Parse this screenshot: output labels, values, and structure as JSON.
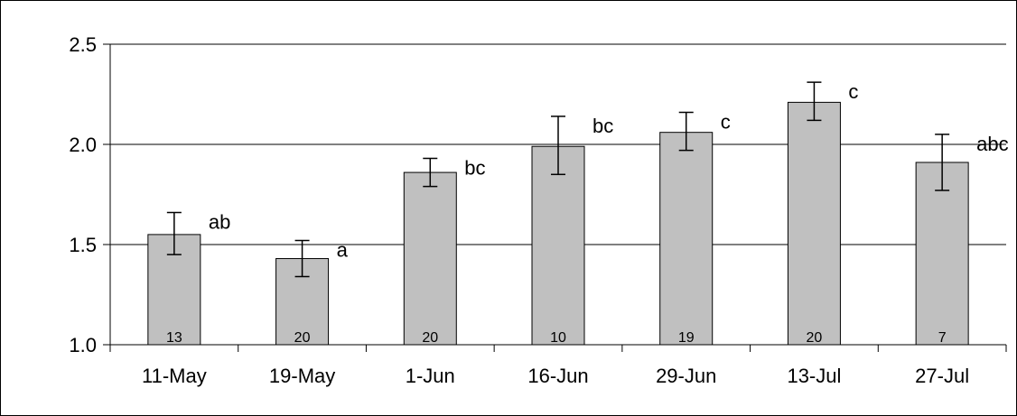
{
  "chart_data": {
    "type": "bar",
    "title": "",
    "xlabel": "",
    "ylabel": "",
    "ylim": [
      1.0,
      2.5
    ],
    "yticks": [
      "1.0",
      "1.5",
      "2.0",
      "2.5"
    ],
    "grid": "horizontal",
    "legend": "none",
    "categories": [
      "11-May",
      "19-May",
      "1-Jun",
      "16-Jun",
      "29-Jun",
      "13-Jul",
      "27-Jul"
    ],
    "series": [
      {
        "values": [
          1.55,
          1.43,
          1.86,
          1.99,
          2.06,
          2.21,
          1.91
        ],
        "error_low": [
          1.45,
          1.34,
          1.79,
          1.85,
          1.97,
          2.12,
          1.77
        ],
        "error_high": [
          1.66,
          1.52,
          1.93,
          2.14,
          2.16,
          2.31,
          2.05
        ],
        "letters": [
          "ab",
          "a",
          "bc",
          "bc",
          "c",
          "c",
          "abc"
        ],
        "counts": [
          "13",
          "20",
          "20",
          "10",
          "19",
          "20",
          "7"
        ]
      }
    ],
    "colors": {
      "bar_fill": "#c0c0c0",
      "bar_stroke": "#000000",
      "grid": "#000000"
    }
  }
}
